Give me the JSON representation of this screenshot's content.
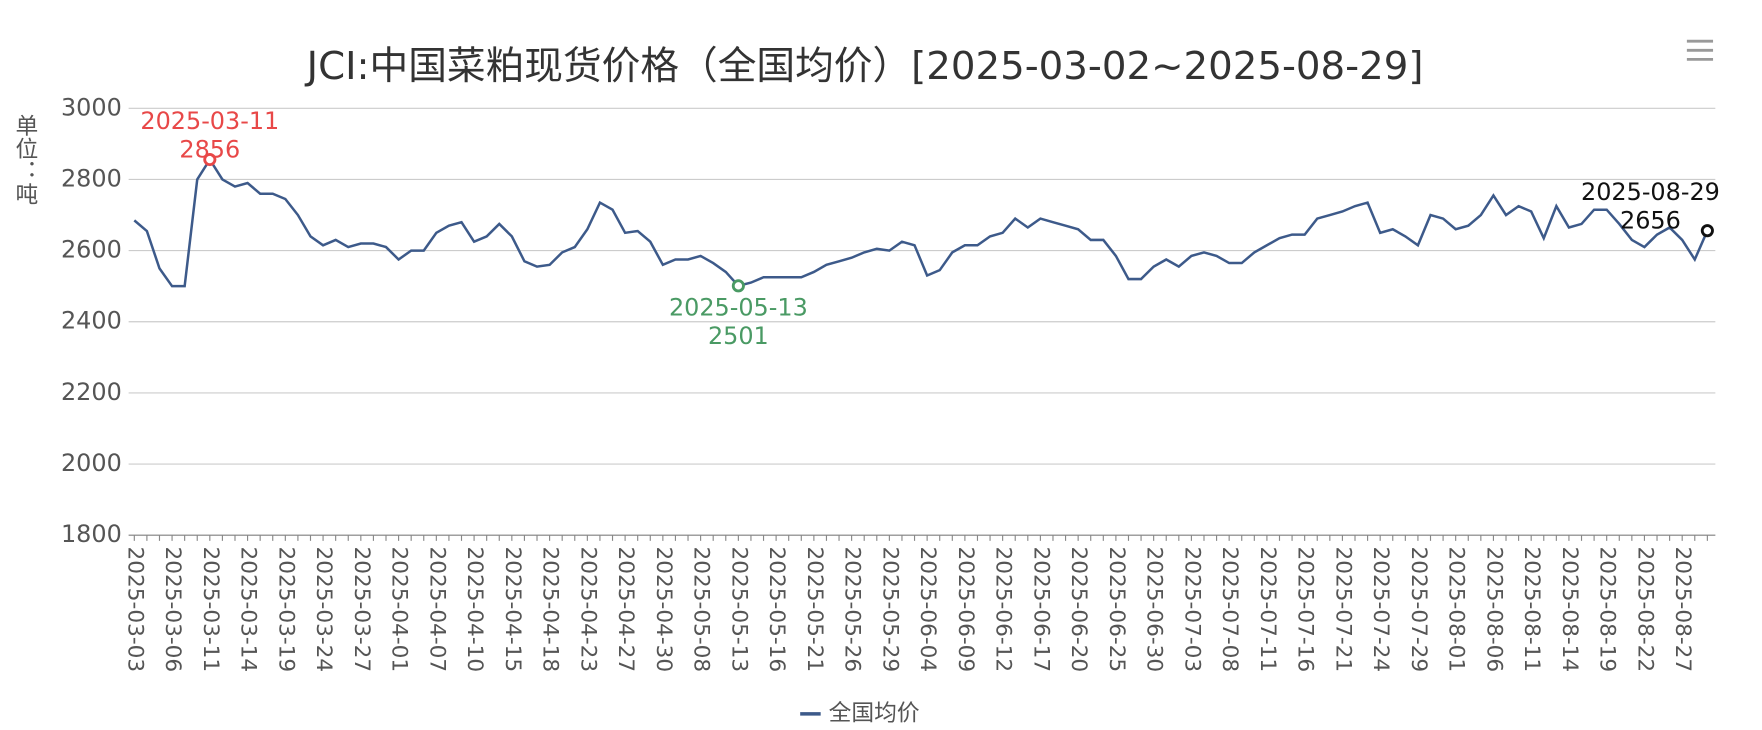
{
  "chart_data": {
    "type": "line",
    "title": "JCI:中国菜粕现货价格（全国均价）[2025-03-02~2025-08-29]",
    "y_label": "单位：吨",
    "categories": [
      "2025-03-03",
      null,
      null,
      "2025-03-06",
      null,
      null,
      "2025-03-11",
      null,
      null,
      "2025-03-14",
      null,
      null,
      "2025-03-19",
      null,
      null,
      "2025-03-24",
      null,
      null,
      "2025-03-27",
      null,
      null,
      "2025-04-01",
      null,
      null,
      "2025-04-07",
      null,
      null,
      "2025-04-10",
      null,
      null,
      "2025-04-15",
      null,
      null,
      "2025-04-18",
      null,
      null,
      "2025-04-23",
      null,
      null,
      "2025-04-27",
      null,
      null,
      "2025-04-30",
      null,
      null,
      "2025-05-08",
      null,
      null,
      "2025-05-13",
      null,
      null,
      "2025-05-16",
      null,
      null,
      "2025-05-21",
      null,
      null,
      "2025-05-26",
      null,
      null,
      "2025-05-29",
      null,
      null,
      "2025-06-04",
      null,
      null,
      "2025-06-09",
      null,
      null,
      "2025-06-12",
      null,
      null,
      "2025-06-17",
      null,
      null,
      "2025-06-20",
      null,
      null,
      "2025-06-25",
      null,
      null,
      "2025-06-30",
      null,
      null,
      "2025-07-03",
      null,
      null,
      "2025-07-08",
      null,
      null,
      "2025-07-11",
      null,
      null,
      "2025-07-16",
      null,
      null,
      "2025-07-21",
      null,
      null,
      "2025-07-24",
      null,
      null,
      "2025-07-29",
      null,
      null,
      "2025-08-01",
      null,
      null,
      "2025-08-06",
      null,
      null,
      "2025-08-11",
      null,
      null,
      "2025-08-14",
      null,
      null,
      "2025-08-19",
      null,
      null,
      "2025-08-22",
      null,
      null,
      "2025-08-27",
      null,
      null
    ],
    "series": [
      {
        "name": "全国均价",
        "color": "#3d5a8a",
        "values": [
          2685,
          2655,
          2550,
          2500,
          2500,
          2800,
          2856,
          2800,
          2780,
          2790,
          2760,
          2760,
          2745,
          2700,
          2640,
          2615,
          2630,
          2610,
          2620,
          2620,
          2610,
          2575,
          2600,
          2600,
          2650,
          2670,
          2680,
          2625,
          2640,
          2675,
          2640,
          2570,
          2555,
          2560,
          2595,
          2610,
          2660,
          2735,
          2715,
          2650,
          2655,
          2625,
          2560,
          2575,
          2575,
          2585,
          2565,
          2540,
          2501,
          2510,
          2525,
          2525,
          2525,
          2525,
          2540,
          2560,
          2570,
          2580,
          2595,
          2605,
          2600,
          2625,
          2615,
          2530,
          2545,
          2595,
          2615,
          2615,
          2640,
          2650,
          2690,
          2665,
          2690,
          2680,
          2670,
          2660,
          2630,
          2630,
          2585,
          2520,
          2520,
          2555,
          2575,
          2555,
          2585,
          2595,
          2585,
          2565,
          2565,
          2595,
          2615,
          2635,
          2645,
          2645,
          2690,
          2700,
          2710,
          2725,
          2735,
          2650,
          2660,
          2640,
          2615,
          2700,
          2690,
          2660,
          2670,
          2700,
          2755,
          2700,
          2725,
          2710,
          2635,
          2725,
          2665,
          2675,
          2715,
          2715,
          2675,
          2630,
          2610,
          2645,
          2665,
          2630,
          2575,
          2656
        ]
      }
    ],
    "markers": [
      {
        "date": "2025-03-11",
        "value": 2856,
        "color": "#e84848"
      },
      {
        "date": "2025-05-13",
        "value": 2501,
        "color": "#4a9a64"
      },
      {
        "date": "2025-08-29",
        "value": 2656,
        "color": "#111111"
      }
    ],
    "ylim": [
      1800,
      3000
    ],
    "yticks": [
      1800,
      2000,
      2200,
      2400,
      2600,
      2800,
      3000
    ],
    "grid": true
  }
}
